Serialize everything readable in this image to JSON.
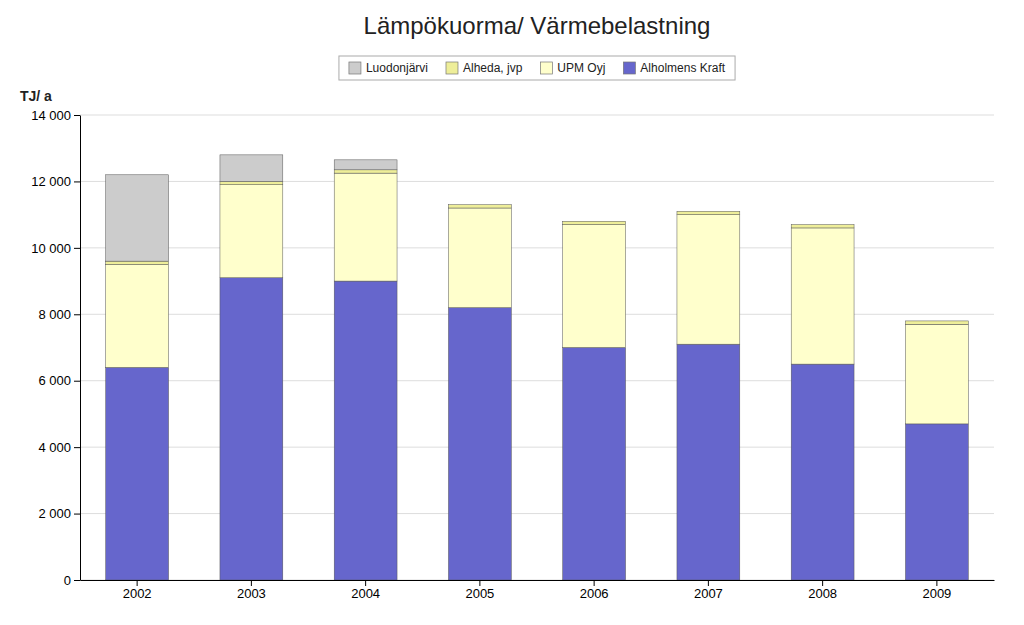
{
  "chart_data": {
    "type": "bar",
    "title": "Lämpökuorma/ Värmebelastning",
    "ylabel": "TJ/ a",
    "categories": [
      "2002",
      "2003",
      "2004",
      "2005",
      "2006",
      "2007",
      "2008",
      "2009"
    ],
    "series": [
      {
        "name": "Alholmens Kraft",
        "color": "#6666CC",
        "values": [
          6400,
          9100,
          9000,
          8200,
          7000,
          7100,
          6500,
          4700
        ]
      },
      {
        "name": "UPM Oyj",
        "color": "#FFFFCC",
        "values": [
          3100,
          2800,
          3250,
          3000,
          3700,
          3900,
          4100,
          3000
        ]
      },
      {
        "name": "Alheda, jvp",
        "color": "#EEEE99",
        "values": [
          100,
          100,
          100,
          100,
          100,
          100,
          100,
          100
        ]
      },
      {
        "name": "Luodonjärvi",
        "color": "#CCCCCC",
        "values": [
          2600,
          800,
          300,
          0,
          0,
          0,
          0,
          0
        ]
      }
    ],
    "stacked": true,
    "ylim": [
      0,
      14000
    ],
    "yticks": [
      0,
      {
        "value": 2000,
        "label": "2 000"
      },
      {
        "value": 4000,
        "label": "4 000"
      },
      {
        "value": 6000,
        "label": "6 000"
      },
      {
        "value": 8000,
        "label": "8 000"
      },
      {
        "value": 10000,
        "label": "10 000"
      },
      {
        "value": 12000,
        "label": "12 000"
      },
      {
        "value": 14000,
        "label": "14 000"
      }
    ],
    "grid": true,
    "legend": "top"
  }
}
